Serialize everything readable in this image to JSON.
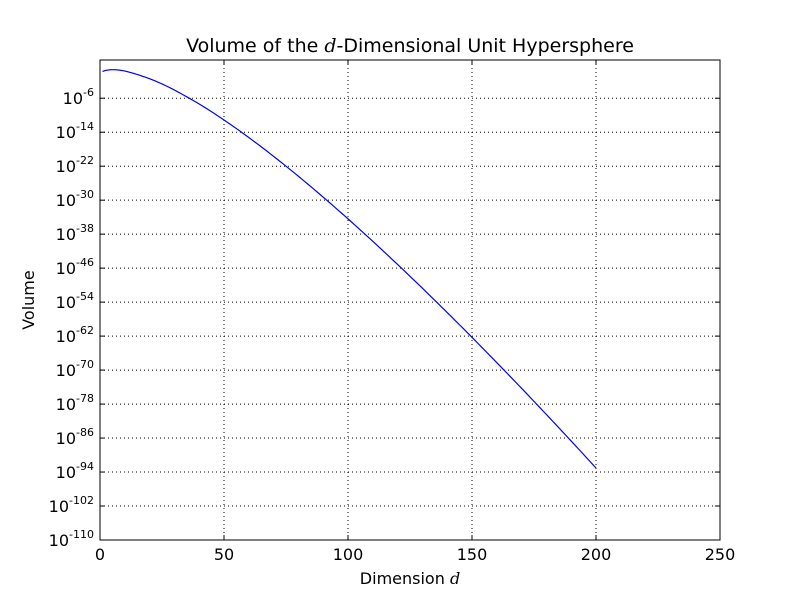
{
  "chart_data": {
    "type": "line",
    "title": {
      "prefix": "Volume of the ",
      "var": "d",
      "suffix": "-Dimensional Unit Hypersphere"
    },
    "xlabel": {
      "prefix": "Dimension ",
      "var": "d"
    },
    "ylabel": "Volume",
    "xlim": [
      0,
      250
    ],
    "ylim": [
      -110,
      3
    ],
    "y_scale": "log10",
    "grid": true,
    "grid_style": "dotted",
    "x_ticks": [
      0,
      50,
      100,
      150,
      200,
      250
    ],
    "x_tick_labels": [
      "0",
      "50",
      "100",
      "150",
      "200",
      "250"
    ],
    "y_ticks": [
      -6,
      -14,
      -22,
      -30,
      -38,
      -46,
      -54,
      -62,
      -70,
      -78,
      -86,
      -94,
      -102,
      -110
    ],
    "y_tick_labels": [
      {
        "base": "10",
        "exp": "-6"
      },
      {
        "base": "10",
        "exp": "-14"
      },
      {
        "base": "10",
        "exp": "-22"
      },
      {
        "base": "10",
        "exp": "-30"
      },
      {
        "base": "10",
        "exp": "-38"
      },
      {
        "base": "10",
        "exp": "-46"
      },
      {
        "base": "10",
        "exp": "-54"
      },
      {
        "base": "10",
        "exp": "-62"
      },
      {
        "base": "10",
        "exp": "-70"
      },
      {
        "base": "10",
        "exp": "-78"
      },
      {
        "base": "10",
        "exp": "-86"
      },
      {
        "base": "10",
        "exp": "-94"
      },
      {
        "base": "10",
        "exp": "-102"
      },
      {
        "base": "10",
        "exp": "-110"
      }
    ],
    "series": [
      {
        "color": "#0000ff",
        "x": [
          1,
          2,
          3,
          4,
          5,
          6,
          7,
          8,
          9,
          10,
          12,
          15,
          20,
          25,
          30,
          40,
          50,
          60,
          70,
          80,
          90,
          100,
          110,
          120,
          130,
          140,
          150,
          160,
          170,
          180,
          190,
          200
        ],
        "y": [
          0.301,
          0.497,
          0.622,
          0.693,
          0.72,
          0.709,
          0.666,
          0.603,
          0.514,
          0.406,
          0.1,
          -0.41,
          -1.41,
          -2.64,
          -4.07,
          -7.36,
          -11.12,
          -15.25,
          -19.68,
          -24.37,
          -29.29,
          -34.4,
          -39.69,
          -45.14,
          -50.73,
          -56.45,
          -62.29,
          -68.25,
          -74.3,
          -80.46,
          -86.71,
          -93.05
        ]
      }
    ]
  }
}
